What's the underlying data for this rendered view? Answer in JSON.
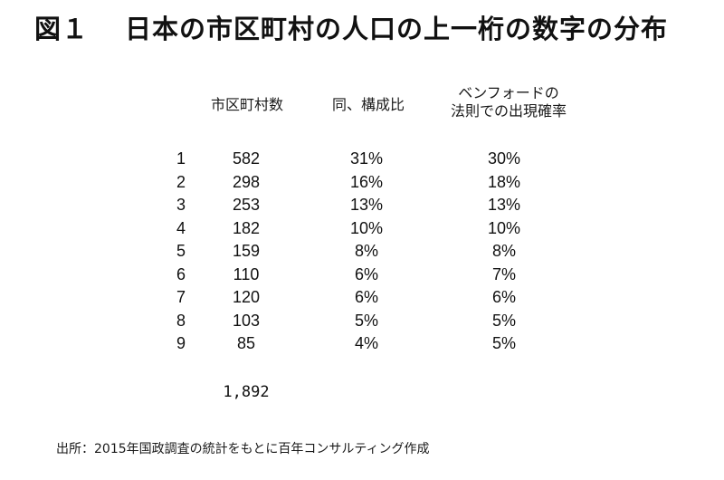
{
  "title": {
    "figure_label": "図１",
    "text": "日本の市区町村の人口の上一桁の数字の分布"
  },
  "table": {
    "headers": {
      "count": "市区町村数",
      "share": "同、構成比",
      "benford_line1": "ベンフォードの",
      "benford_line2": "法則での出現確率"
    },
    "rows": [
      {
        "digit": "1",
        "count": "582",
        "share": "31%",
        "benford": "30%"
      },
      {
        "digit": "2",
        "count": "298",
        "share": "16%",
        "benford": "18%"
      },
      {
        "digit": "3",
        "count": "253",
        "share": "13%",
        "benford": "13%"
      },
      {
        "digit": "4",
        "count": "182",
        "share": "10%",
        "benford": "10%"
      },
      {
        "digit": "5",
        "count": "159",
        "share": "8%",
        "benford": "8%"
      },
      {
        "digit": "6",
        "count": "110",
        "share": "6%",
        "benford": "7%"
      },
      {
        "digit": "7",
        "count": "120",
        "share": "6%",
        "benford": "6%"
      },
      {
        "digit": "8",
        "count": "103",
        "share": "5%",
        "benford": "5%"
      },
      {
        "digit": "9",
        "count": "85",
        "share": "4%",
        "benford": "5%"
      }
    ],
    "total": "1,892"
  },
  "source": "出所：2015年国政調査の統計をもとに百年コンサルティング作成"
}
